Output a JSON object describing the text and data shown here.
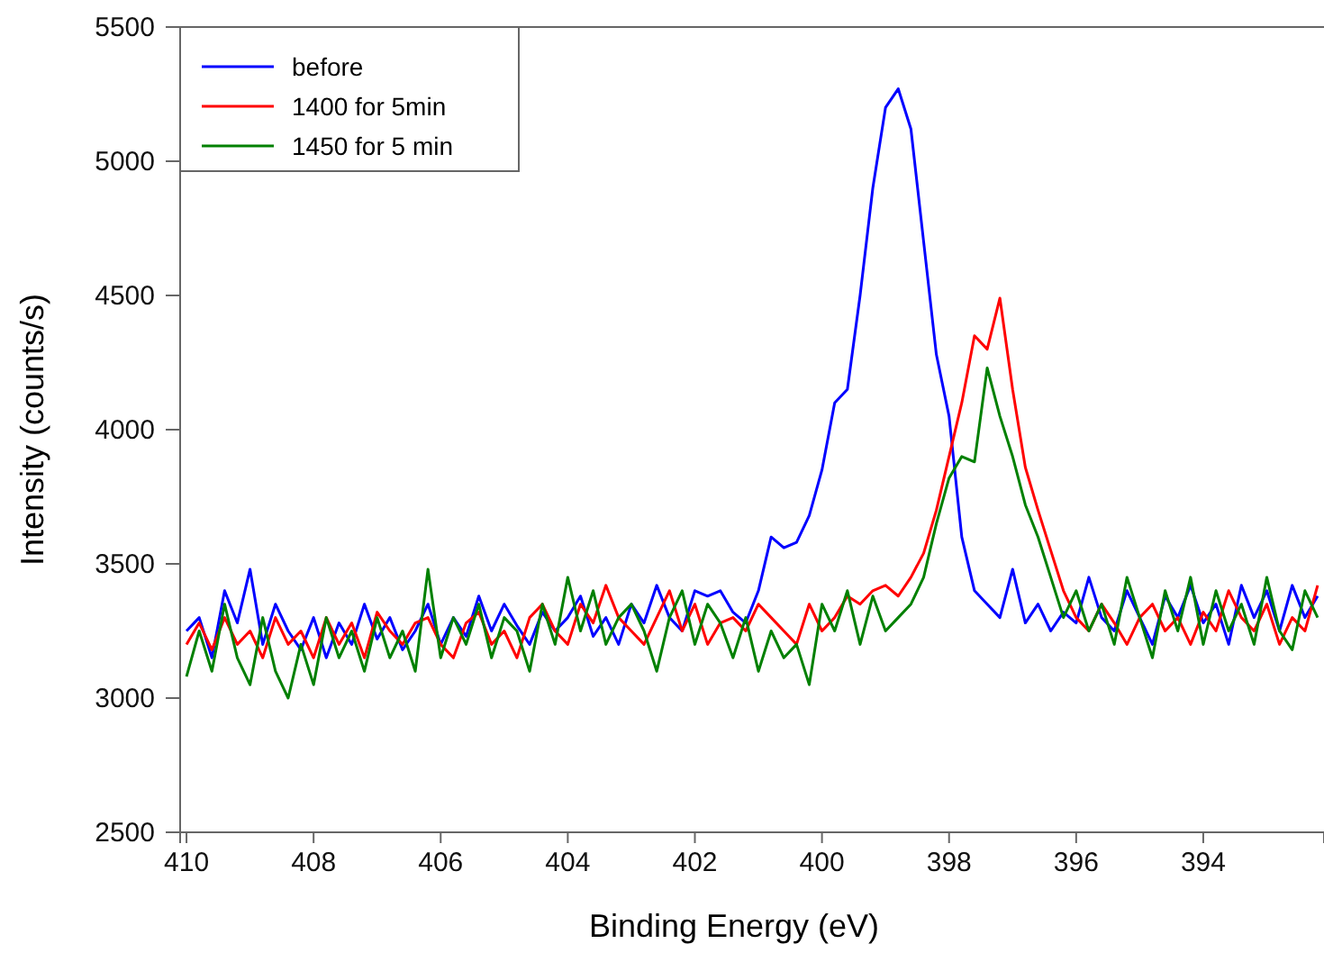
{
  "chart_data": {
    "type": "line",
    "xlabel": "Binding Energy (eV)",
    "ylabel": "Intensity (counts/s)",
    "x": [
      410.0,
      409.8,
      409.6,
      409.4,
      409.2,
      409.0,
      408.8,
      408.6,
      408.4,
      408.2,
      408.0,
      407.8,
      407.6,
      407.4,
      407.2,
      407.0,
      406.8,
      406.6,
      406.4,
      406.2,
      406.0,
      405.8,
      405.6,
      405.4,
      405.2,
      405.0,
      404.8,
      404.6,
      404.4,
      404.2,
      404.0,
      403.8,
      403.6,
      403.4,
      403.2,
      403.0,
      402.8,
      402.6,
      402.4,
      402.2,
      402.0,
      401.8,
      401.6,
      401.4,
      401.2,
      401.0,
      400.8,
      400.6,
      400.4,
      400.2,
      400.0,
      399.8,
      399.6,
      399.4,
      399.2,
      399.0,
      398.8,
      398.6,
      398.4,
      398.2,
      398.0,
      397.8,
      397.6,
      397.4,
      397.2,
      397.0,
      396.8,
      396.6,
      396.4,
      396.2,
      396.0,
      395.8,
      395.6,
      395.4,
      395.2,
      395.0,
      394.8,
      394.6,
      394.4,
      394.2,
      394.0,
      393.8,
      393.6,
      393.4,
      393.2,
      393.0,
      392.8,
      392.6,
      392.4,
      392.2
    ],
    "series": [
      {
        "name": "before",
        "color": "#0000ff",
        "values": [
          3250,
          3300,
          3150,
          3400,
          3280,
          3480,
          3200,
          3350,
          3250,
          3180,
          3300,
          3150,
          3280,
          3200,
          3350,
          3220,
          3300,
          3180,
          3250,
          3350,
          3200,
          3300,
          3230,
          3380,
          3250,
          3350,
          3270,
          3200,
          3320,
          3250,
          3300,
          3380,
          3230,
          3300,
          3200,
          3350,
          3280,
          3420,
          3300,
          3250,
          3400,
          3380,
          3400,
          3320,
          3280,
          3400,
          3600,
          3560,
          3580,
          3680,
          3850,
          4100,
          4150,
          4500,
          4900,
          5200,
          5270,
          5120,
          4700,
          4280,
          4050,
          3600,
          3400,
          3350,
          3300,
          3480,
          3280,
          3350,
          3250,
          3320,
          3280,
          3450,
          3300,
          3250,
          3400,
          3300,
          3200,
          3380,
          3300,
          3420,
          3280,
          3350,
          3200,
          3420,
          3300,
          3400,
          3250,
          3420,
          3300,
          3380
        ]
      },
      {
        "name": "1400 for 5min",
        "color": "#ff0000",
        "values": [
          3200,
          3280,
          3180,
          3300,
          3200,
          3250,
          3150,
          3300,
          3200,
          3250,
          3150,
          3300,
          3200,
          3280,
          3150,
          3320,
          3250,
          3200,
          3280,
          3300,
          3200,
          3150,
          3280,
          3320,
          3200,
          3250,
          3150,
          3300,
          3350,
          3250,
          3200,
          3350,
          3280,
          3420,
          3300,
          3250,
          3200,
          3300,
          3400,
          3250,
          3350,
          3200,
          3280,
          3300,
          3250,
          3350,
          3300,
          3250,
          3200,
          3350,
          3250,
          3300,
          3380,
          3350,
          3400,
          3420,
          3380,
          3450,
          3540,
          3700,
          3900,
          4100,
          4350,
          4300,
          4490,
          4150,
          3860,
          3700,
          3550,
          3400,
          3300,
          3250,
          3350,
          3280,
          3200,
          3300,
          3350,
          3250,
          3300,
          3200,
          3320,
          3250,
          3400,
          3300,
          3250,
          3350,
          3200,
          3300,
          3250,
          3420
        ]
      },
      {
        "name": "1450 for 5 min",
        "color": "#008000",
        "values": [
          3080,
          3250,
          3100,
          3350,
          3150,
          3050,
          3300,
          3100,
          3000,
          3200,
          3050,
          3300,
          3150,
          3250,
          3100,
          3300,
          3150,
          3250,
          3100,
          3480,
          3150,
          3300,
          3200,
          3350,
          3150,
          3300,
          3250,
          3100,
          3350,
          3200,
          3450,
          3250,
          3400,
          3200,
          3300,
          3350,
          3250,
          3100,
          3300,
          3400,
          3200,
          3350,
          3280,
          3150,
          3300,
          3100,
          3250,
          3150,
          3200,
          3050,
          3350,
          3250,
          3400,
          3200,
          3380,
          3250,
          3300,
          3350,
          3450,
          3650,
          3820,
          3900,
          3880,
          4230,
          4050,
          3900,
          3720,
          3600,
          3450,
          3300,
          3400,
          3250,
          3350,
          3200,
          3450,
          3300,
          3150,
          3400,
          3250,
          3450,
          3200,
          3400,
          3250,
          3350,
          3200,
          3450,
          3250,
          3180,
          3400,
          3300
        ]
      }
    ],
    "xlim": [
      410.1,
      392.1
    ],
    "xticks": [
      410,
      408,
      406,
      404,
      402,
      400,
      398,
      396,
      394
    ],
    "ylim": [
      2500,
      5500
    ],
    "yticks": [
      2500,
      3000,
      3500,
      4000,
      4500,
      5000,
      5500
    ],
    "grid": false,
    "legend": "top left",
    "marker": "none",
    "line_style": "solid"
  }
}
